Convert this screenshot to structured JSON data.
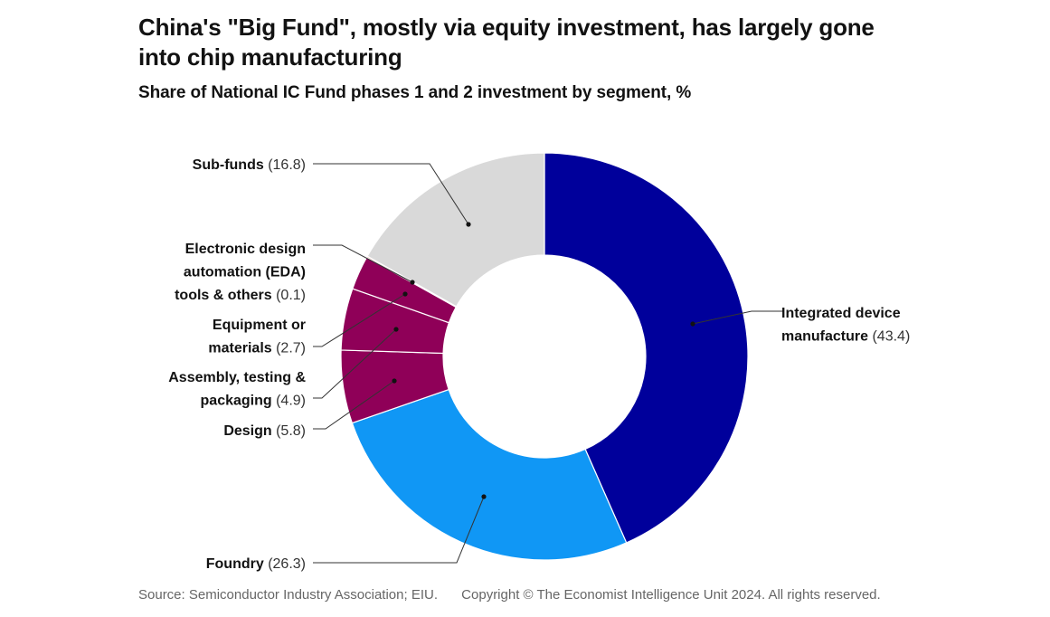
{
  "title": "China's \"Big Fund\", mostly via equity investment, has largely gone into chip manufacturing",
  "subtitle": "Share of National IC Fund phases 1 and 2 investment by segment, %",
  "source": "Source: Semiconductor Industry Association; EIU.",
  "copyright": "Copyright © The Economist Intelligence Unit 2024. All rights reserved.",
  "chart_data": {
    "type": "pie",
    "donut": true,
    "unit": "%",
    "slices": [
      {
        "label": "Integrated device manufacture",
        "value": 43.4,
        "label_lines": [
          "Integrated device",
          "manufacture"
        ],
        "color": "#00009b"
      },
      {
        "label": "Foundry",
        "value": 26.3,
        "label_lines": [
          "Foundry"
        ],
        "color": "#1097f5"
      },
      {
        "label": "Design",
        "value": 5.8,
        "label_lines": [
          "Design"
        ],
        "color": "#8f0058"
      },
      {
        "label": "Assembly, testing & packaging",
        "value": 4.9,
        "label_lines": [
          "Assembly, testing &",
          "packaging"
        ],
        "color": "#8f0058"
      },
      {
        "label": "Equipment or materials",
        "value": 2.7,
        "label_lines": [
          "Equipment or",
          "materials"
        ],
        "color": "#8f0058"
      },
      {
        "label": "Electronic design automation (EDA) tools & others",
        "value": 0.1,
        "label_lines": [
          "Electronic design",
          "automation (EDA)",
          "tools & others"
        ],
        "color": "#f95c4a"
      },
      {
        "label": "Sub-funds",
        "value": 16.8,
        "label_lines": [
          "Sub-funds"
        ],
        "color": "#d9d9d9"
      }
    ]
  }
}
